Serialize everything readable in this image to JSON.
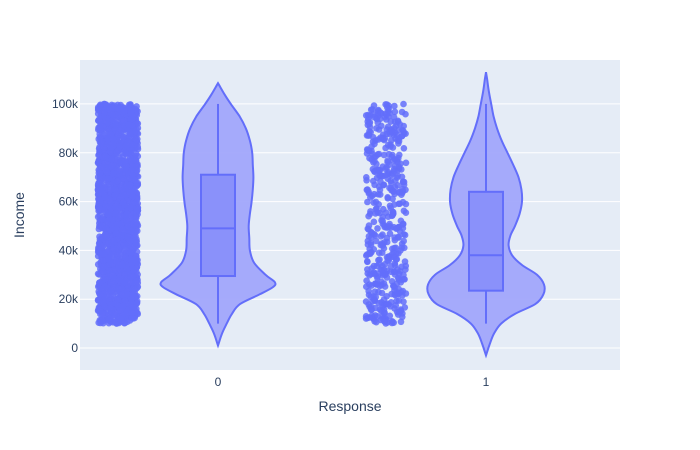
{
  "chart_data": {
    "type": "violin",
    "title": "",
    "xlabel": "Response",
    "ylabel": "Income",
    "categories": [
      "0",
      "1"
    ],
    "ylim": [
      -9000,
      118000
    ],
    "y_ticks": [
      0,
      20000,
      40000,
      60000,
      80000,
      100000
    ],
    "y_tick_labels": [
      "0",
      "20k",
      "40k",
      "60k",
      "80k",
      "100k"
    ],
    "colors": {
      "plot_bg": "#e5ecf6",
      "grid": "#ffffff",
      "marker": "#636efa",
      "violin_fill": "#a1a7fb",
      "violin_line": "#636efa",
      "box_fill": "#8a91fa"
    },
    "series": [
      {
        "name": "0",
        "box": {
          "min": 10000,
          "q1": 29500,
          "median": 49000,
          "q3": 71000,
          "max": 100000
        },
        "violin_range": [
          1000,
          108500
        ],
        "density": [
          [
            1000,
            0.0
          ],
          [
            6000,
            0.07
          ],
          [
            10000,
            0.15
          ],
          [
            14000,
            0.24
          ],
          [
            18000,
            0.38
          ],
          [
            22000,
            0.72
          ],
          [
            25000,
            0.95
          ],
          [
            27000,
            0.98
          ],
          [
            30000,
            0.82
          ],
          [
            35000,
            0.62
          ],
          [
            40000,
            0.55
          ],
          [
            45000,
            0.54
          ],
          [
            50000,
            0.53
          ],
          [
            55000,
            0.55
          ],
          [
            60000,
            0.58
          ],
          [
            65000,
            0.6
          ],
          [
            70000,
            0.61
          ],
          [
            75000,
            0.6
          ],
          [
            80000,
            0.59
          ],
          [
            85000,
            0.55
          ],
          [
            90000,
            0.48
          ],
          [
            95000,
            0.37
          ],
          [
            100000,
            0.22
          ],
          [
            104000,
            0.11
          ],
          [
            108500,
            0.0
          ]
        ],
        "point_count": 1900,
        "point_range": [
          10000,
          100000
        ]
      },
      {
        "name": "1",
        "box": {
          "min": 10000,
          "q1": 23500,
          "median": 38000,
          "q3": 64000,
          "max": 100000
        },
        "violin_range": [
          -3000,
          113000
        ],
        "density": [
          [
            -3000,
            0.0
          ],
          [
            2000,
            0.07
          ],
          [
            6000,
            0.14
          ],
          [
            10000,
            0.26
          ],
          [
            14000,
            0.5
          ],
          [
            18000,
            0.85
          ],
          [
            22000,
            0.99
          ],
          [
            26000,
            1.0
          ],
          [
            30000,
            0.88
          ],
          [
            34000,
            0.62
          ],
          [
            38000,
            0.45
          ],
          [
            42000,
            0.39
          ],
          [
            46000,
            0.42
          ],
          [
            50000,
            0.5
          ],
          [
            55000,
            0.58
          ],
          [
            60000,
            0.62
          ],
          [
            65000,
            0.61
          ],
          [
            70000,
            0.56
          ],
          [
            75000,
            0.47
          ],
          [
            80000,
            0.37
          ],
          [
            85000,
            0.27
          ],
          [
            90000,
            0.19
          ],
          [
            95000,
            0.13
          ],
          [
            100000,
            0.09
          ],
          [
            105000,
            0.05
          ],
          [
            110000,
            0.02
          ],
          [
            113000,
            0.0
          ]
        ],
        "point_count": 480,
        "point_range": [
          10000,
          100000
        ]
      }
    ]
  }
}
